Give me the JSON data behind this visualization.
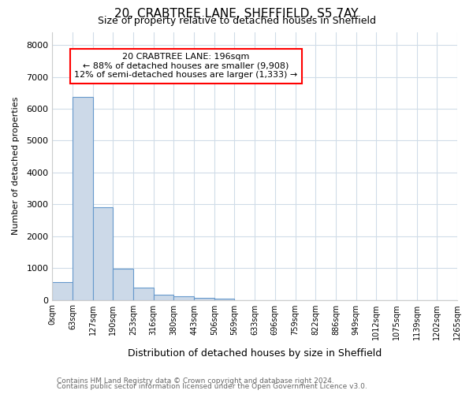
{
  "title": "20, CRABTREE LANE, SHEFFIELD, S5 7AY",
  "subtitle": "Size of property relative to detached houses in Sheffield",
  "xlabel": "Distribution of detached houses by size in Sheffield",
  "ylabel": "Number of detached properties",
  "bar_color": "#ccd9e8",
  "bar_edge_color": "#6699cc",
  "bin_labels": [
    "0sqm",
    "63sqm",
    "127sqm",
    "190sqm",
    "253sqm",
    "316sqm",
    "380sqm",
    "443sqm",
    "506sqm",
    "569sqm",
    "633sqm",
    "696sqm",
    "759sqm",
    "822sqm",
    "886sqm",
    "949sqm",
    "1012sqm",
    "1075sqm",
    "1139sqm",
    "1202sqm",
    "1265sqm"
  ],
  "bar_heights": [
    560,
    6380,
    2920,
    980,
    375,
    155,
    105,
    70,
    50,
    0,
    0,
    0,
    0,
    0,
    0,
    0,
    0,
    0,
    0,
    0
  ],
  "ylim": [
    0,
    8400
  ],
  "yticks": [
    0,
    1000,
    2000,
    3000,
    4000,
    5000,
    6000,
    7000,
    8000
  ],
  "annotation_line1": "20 CRABTREE LANE: 196sqm",
  "annotation_line2": "← 88% of detached houses are smaller (9,908)",
  "annotation_line3": "12% of semi-detached houses are larger (1,333) →",
  "footnote_line1": "Contains HM Land Registry data © Crown copyright and database right 2024.",
  "footnote_line2": "Contains public sector information licensed under the Open Government Licence v3.0.",
  "bg_color": "#ffffff",
  "plot_bg_color": "#ffffff",
  "grid_color": "#d0dce8"
}
